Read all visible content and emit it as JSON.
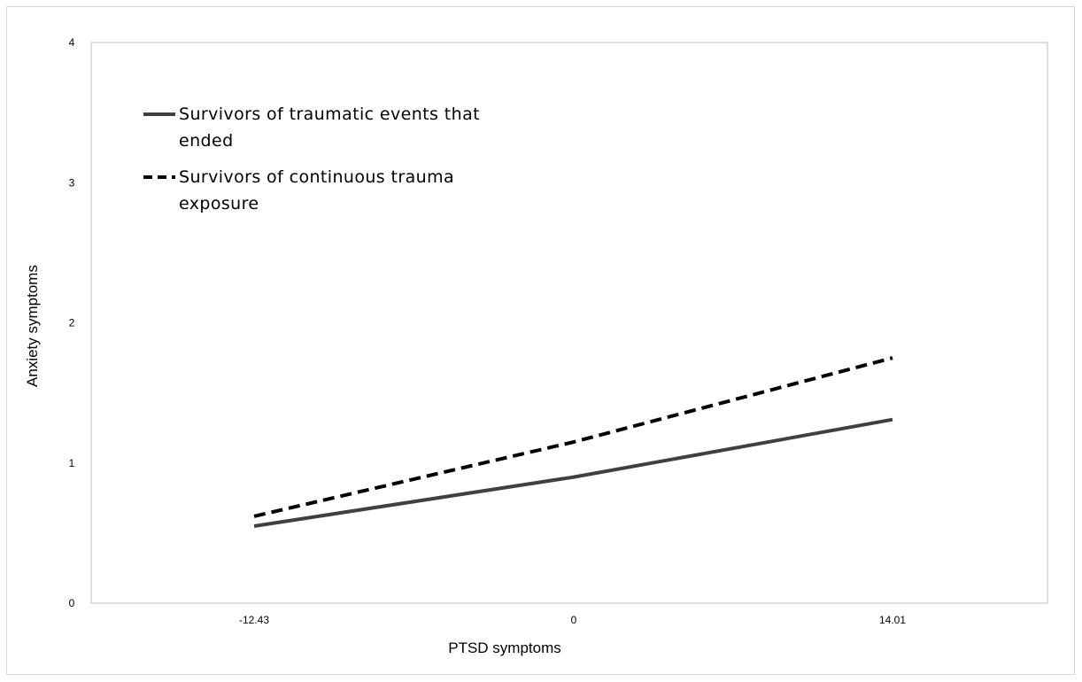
{
  "chart_data": {
    "type": "line",
    "title": "",
    "xlabel": "PTSD symptoms",
    "ylabel": "Anxiety symptoms",
    "x_categories": [
      "-12.43",
      "0",
      "14.01"
    ],
    "yticks": [
      "0",
      "1",
      "2",
      "3",
      "4"
    ],
    "ylim": [
      0,
      4
    ],
    "grid": false,
    "legend_position": "top-left",
    "series": [
      {
        "name_lines": [
          "Survivors of traumatic events that",
          "ended"
        ],
        "style": "solid",
        "color": "#404040",
        "values": [
          0.55,
          0.9,
          1.31
        ]
      },
      {
        "name_lines": [
          "Survivors of continuous trauma",
          "exposure"
        ],
        "style": "dashed",
        "color": "#000000",
        "values": [
          0.62,
          1.15,
          1.75
        ]
      }
    ]
  }
}
